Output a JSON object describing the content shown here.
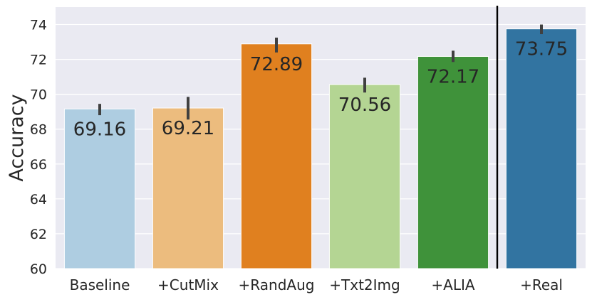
{
  "chart_data": {
    "type": "bar",
    "title": "",
    "xlabel": "",
    "ylabel": "Accuracy",
    "ylim": [
      60,
      75
    ],
    "yticks": [
      60,
      62,
      64,
      66,
      68,
      70,
      72,
      74
    ],
    "grid": true,
    "categories": [
      "Baseline",
      "+CutMix",
      "+RandAug",
      "+Txt2Img",
      "+ALIA",
      "+Real"
    ],
    "values": [
      69.16,
      69.21,
      72.89,
      70.56,
      72.17,
      73.75
    ],
    "value_labels": [
      "69.16",
      "69.21",
      "72.89",
      "70.56",
      "72.17",
      "73.75"
    ],
    "error_bars": [
      [
        68.8,
        69.45
      ],
      [
        68.55,
        69.85
      ],
      [
        72.4,
        73.25
      ],
      [
        70.1,
        70.95
      ],
      [
        71.85,
        72.5
      ],
      [
        73.45,
        74.0
      ]
    ],
    "colors": [
      "#aecde1",
      "#ecbc7e",
      "#e0801f",
      "#b4d593",
      "#3f923a",
      "#3274a1"
    ],
    "separator_after_index": 4,
    "background_color": "#eaeaf2",
    "grid_color": "#ffffff",
    "errorbar_color": "#404040"
  }
}
